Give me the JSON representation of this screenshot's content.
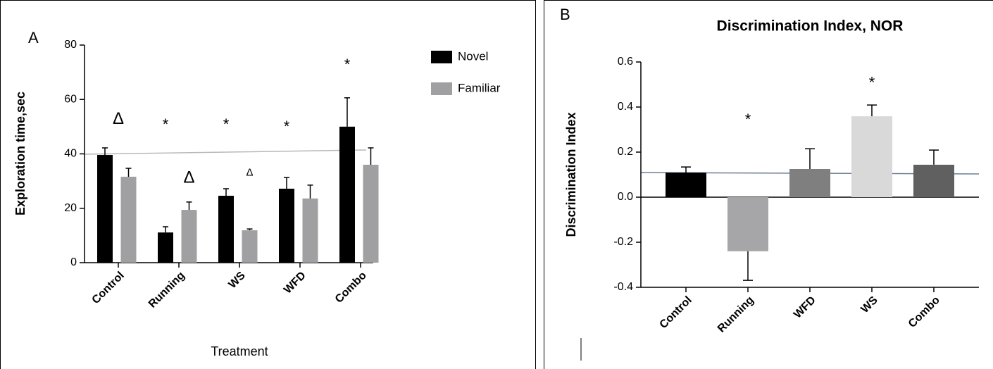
{
  "chart_data": [
    {
      "type": "bar",
      "panel_label": "A",
      "y_label": "Exploration time,sec",
      "x_label": "Treatment",
      "categories": [
        "Control",
        "Running",
        "WS",
        "WFD",
        "Combo"
      ],
      "series": [
        {
          "name": "Novel",
          "color": "#000000",
          "values": [
            39.6,
            11.1,
            24.6,
            27.2,
            50.0
          ],
          "errors": [
            2.6,
            2.1,
            2.6,
            4.1,
            10.6
          ]
        },
        {
          "name": "Familiar",
          "color": "#a0a0a2",
          "values": [
            31.6,
            19.4,
            11.9,
            23.6,
            36.0
          ],
          "errors": [
            3.1,
            2.9,
            0.5,
            4.9,
            6.2
          ]
        }
      ],
      "ylim": [
        0,
        80
      ],
      "yticks": [
        0,
        20,
        40,
        60,
        80
      ],
      "legend": "upper right",
      "annotations": [
        {
          "text": "Δ",
          "x": "Control",
          "y": 52.6
        },
        {
          "text": "*",
          "x": "Running",
          "series": "Novel",
          "y": 51.5
        },
        {
          "text": "*",
          "x": "WS",
          "series": "Novel",
          "y": 51.5
        },
        {
          "text": "*",
          "x": "WFD",
          "series": "Novel",
          "y": 50.7
        },
        {
          "text": "*",
          "x": "Combo",
          "series": "Novel",
          "y": 73.5
        },
        {
          "text": "Δ",
          "x": "Running",
          "series": "Familiar",
          "y": 31
        },
        {
          "text": "Δ",
          "x": "WS",
          "series": "Familiar",
          "y": 33,
          "size": "small"
        }
      ]
    },
    {
      "type": "bar",
      "panel_label": "B",
      "title": "Discrimination Index, NOR",
      "y_label": "Discrimination Index",
      "categories": [
        "Control",
        "Running",
        "WFD",
        "WS",
        "Combo"
      ],
      "values": [
        0.109,
        -0.24,
        0.125,
        0.359,
        0.144
      ],
      "errors": [
        0.025,
        0.129,
        0.09,
        0.05,
        0.065
      ],
      "colors": [
        "#000000",
        "#a6a6a8",
        "#7f7f7f",
        "#d9d9d9",
        "#606060"
      ],
      "ylim": [
        -0.4,
        0.6
      ],
      "yticks": [
        -0.4,
        -0.2,
        {
          "value": 0,
          "label": "0.0"
        },
        0.2,
        0.4,
        0.6
      ],
      "annotations": [
        {
          "text": "*",
          "x": "Running",
          "y": 0.353
        },
        {
          "text": "*",
          "x": "WS",
          "y": 0.516
        }
      ]
    }
  ]
}
